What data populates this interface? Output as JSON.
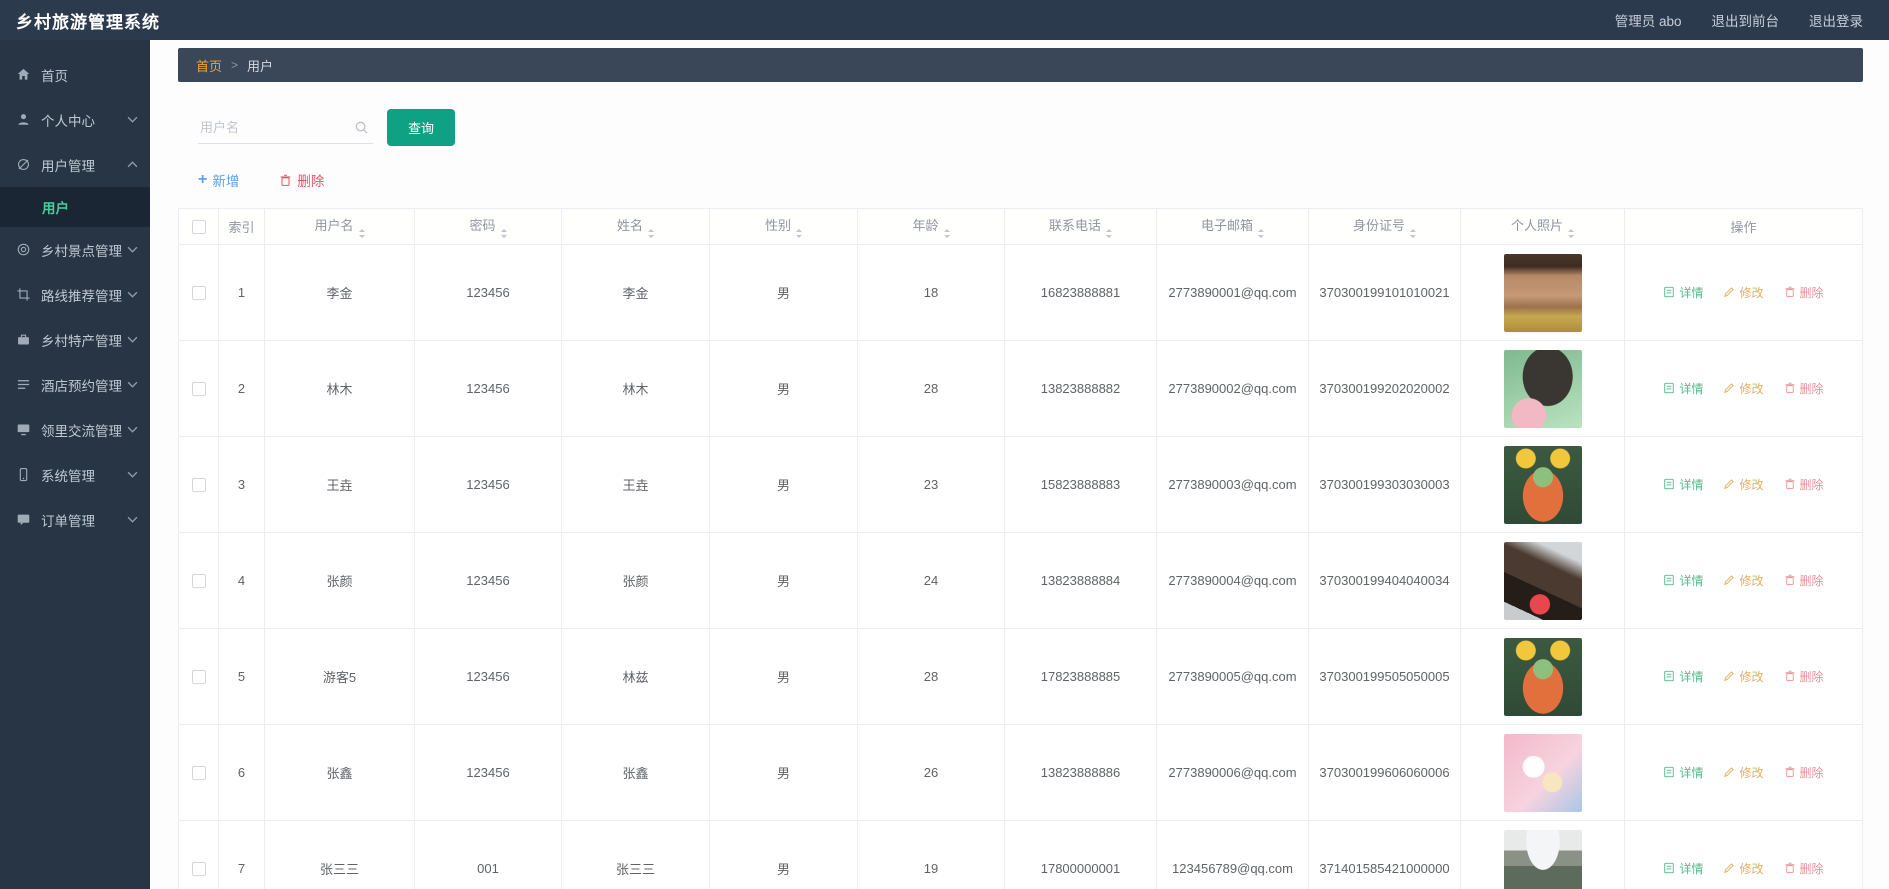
{
  "app": {
    "title": "乡村旅游管理系统"
  },
  "navbar": {
    "admin_label": "管理员 abo",
    "exit_front_label": "退出到前台",
    "logout_label": "退出登录"
  },
  "sidebar": {
    "items": [
      {
        "type": "item",
        "name": "home",
        "label": "首页",
        "icon": "home-icon",
        "chevron": null
      },
      {
        "type": "item",
        "name": "profile-center",
        "label": "个人中心",
        "icon": "user-icon",
        "chevron": "down"
      },
      {
        "type": "item",
        "name": "user-management",
        "label": "用户管理",
        "icon": "edit-icon",
        "chevron": "up",
        "expanded": true
      },
      {
        "type": "subitem",
        "name": "user",
        "label": "用户",
        "active": true
      },
      {
        "type": "item",
        "name": "scenic-spot-management",
        "label": "乡村景点管理",
        "icon": "target-icon",
        "chevron": "down"
      },
      {
        "type": "item",
        "name": "route-recommend-management",
        "label": "路线推荐管理",
        "icon": "crop-icon",
        "chevron": "down"
      },
      {
        "type": "item",
        "name": "specialty-management",
        "label": "乡村特产管理",
        "icon": "bag-icon",
        "chevron": "down"
      },
      {
        "type": "item",
        "name": "hotel-booking-management",
        "label": "酒店预约管理",
        "icon": "list-icon",
        "chevron": "down"
      },
      {
        "type": "item",
        "name": "neighbor-forum-management",
        "label": "领里交流管理",
        "icon": "monitor-icon",
        "chevron": "down"
      },
      {
        "type": "item",
        "name": "system-management",
        "label": "系统管理",
        "icon": "mobile-icon",
        "chevron": "down"
      },
      {
        "type": "item",
        "name": "order-management",
        "label": "订单管理",
        "icon": "chat-icon",
        "chevron": "down"
      }
    ]
  },
  "breadcrumb": {
    "home": "首页",
    "separator": ">",
    "current": "用户"
  },
  "toolbar": {
    "search_placeholder": "用户名",
    "query_label": "查询",
    "add_label": "新增",
    "delete_label": "删除"
  },
  "table": {
    "columns": [
      {
        "key": "checkbox",
        "label": "",
        "sortable": false
      },
      {
        "key": "index",
        "label": "索引",
        "sortable": false
      },
      {
        "key": "username",
        "label": "用户名",
        "sortable": true
      },
      {
        "key": "password",
        "label": "密码",
        "sortable": true
      },
      {
        "key": "name",
        "label": "姓名",
        "sortable": true
      },
      {
        "key": "gender",
        "label": "性别",
        "sortable": true
      },
      {
        "key": "age",
        "label": "年龄",
        "sortable": true
      },
      {
        "key": "phone",
        "label": "联系电话",
        "sortable": true
      },
      {
        "key": "email",
        "label": "电子邮箱",
        "sortable": true
      },
      {
        "key": "id_number",
        "label": "身份证号",
        "sortable": true
      },
      {
        "key": "photo",
        "label": "个人照片",
        "sortable": true
      },
      {
        "key": "actions",
        "label": "操作",
        "sortable": false
      }
    ],
    "row_actions": {
      "detail": "详情",
      "edit": "修改",
      "delete": "删除"
    },
    "rows": [
      {
        "index": "1",
        "username": "李金",
        "password": "123456",
        "name": "李金",
        "gender": "男",
        "age": "18",
        "phone": "16823888881",
        "email": "2773890001@qq.com",
        "id_number": "370300199101010021",
        "photo": "man-grimace"
      },
      {
        "index": "2",
        "username": "林木",
        "password": "123456",
        "name": "林木",
        "gender": "男",
        "age": "28",
        "phone": "13823888882",
        "email": "2773890002@qq.com",
        "id_number": "370300199202020002",
        "photo": "anime-girl"
      },
      {
        "index": "3",
        "username": "王垚",
        "password": "123456",
        "name": "王垚",
        "gender": "男",
        "age": "23",
        "phone": "15823888883",
        "email": "2773890003@qq.com",
        "id_number": "370300199303030003",
        "photo": "frog-astronaut"
      },
      {
        "index": "4",
        "username": "张颜",
        "password": "123456",
        "name": "张颜",
        "gender": "男",
        "age": "24",
        "phone": "13823888884",
        "email": "2773890004@qq.com",
        "id_number": "370300199404040034",
        "photo": "dog-lollipop"
      },
      {
        "index": "5",
        "username": "游客5",
        "password": "123456",
        "name": "林兹",
        "gender": "男",
        "age": "28",
        "phone": "17823888885",
        "email": "2773890005@qq.com",
        "id_number": "370300199505050005",
        "photo": "frog-astronaut"
      },
      {
        "index": "6",
        "username": "张鑫",
        "password": "123456",
        "name": "张鑫",
        "gender": "男",
        "age": "26",
        "phone": "13823888886",
        "email": "2773890006@qq.com",
        "id_number": "370300199606060006",
        "photo": "shinchan-pink"
      },
      {
        "index": "7",
        "username": "张三三",
        "password": "001",
        "name": "张三三",
        "gender": "男",
        "age": "19",
        "phone": "17800000001",
        "email": "123456789@qq.com",
        "id_number": "371401585421000000",
        "photo": "chef-fish"
      }
    ]
  },
  "accent_colors": {
    "navbar_bg": "#2b3a4c",
    "sidebar_bg": "#273544",
    "active_menu_green": "#41d1a0",
    "breadcrumb_home_orange": "#f2a33c",
    "query_button_teal": "#0fa183",
    "add_blue": "#5b9df0",
    "delete_red": "#e25565",
    "action_detail_green": "#57b98b",
    "action_edit_orange": "#e7ae62",
    "action_delete_pink": "#ee8f9b"
  }
}
